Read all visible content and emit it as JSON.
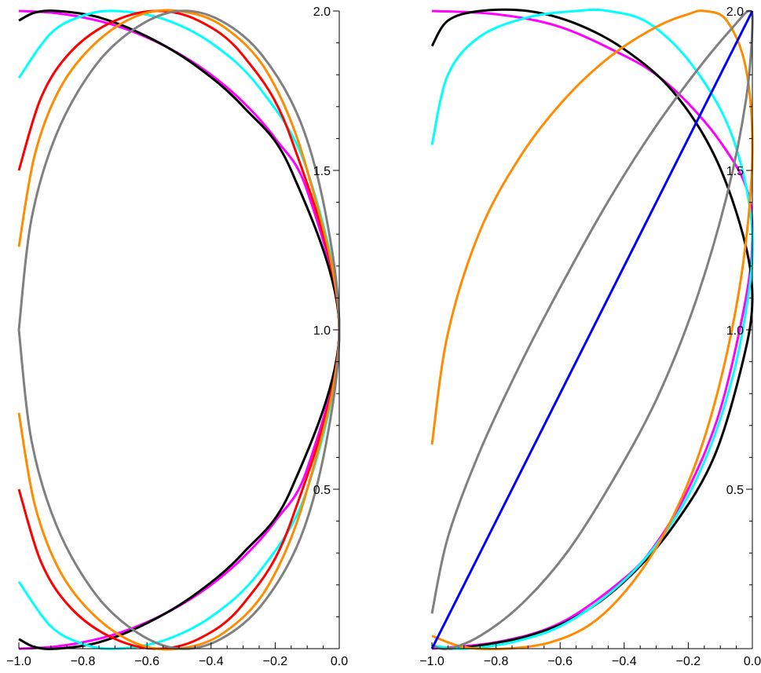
{
  "chart_data": [
    {
      "type": "line",
      "title": "",
      "xlabel": "",
      "ylabel": "",
      "xlim": [
        -1.0,
        0.0
      ],
      "ylim": [
        0.0,
        2.0
      ],
      "grid": false,
      "x_ticks": [
        "-1.0",
        "-0.8",
        "-0.6",
        "-0.4",
        "-0.2",
        "0.0"
      ],
      "y_ticks": [
        "0.5",
        "1.0",
        "1.5",
        "2.0"
      ],
      "series": [
        {
          "color": "#ff00ff",
          "x": [
            -1.0,
            -0.9,
            -0.8,
            -0.7,
            -0.6,
            -0.5,
            -0.4,
            -0.3,
            -0.2,
            -0.1,
            0.0,
            -0.1,
            -0.2,
            -0.3,
            -0.4,
            -0.5,
            -0.6,
            -0.7,
            -0.8,
            -0.9,
            -1.0
          ],
          "y": [
            2.0,
            1.995,
            1.98,
            1.955,
            1.917,
            1.866,
            1.8,
            1.714,
            1.6,
            1.436,
            1.0,
            0.564,
            0.4,
            0.286,
            0.2,
            0.134,
            0.083,
            0.045,
            0.02,
            0.005,
            0.0
          ]
        },
        {
          "color": "#000000",
          "x": [
            -1.0,
            -0.95,
            -0.88,
            -0.75,
            -0.6,
            -0.45,
            -0.3,
            -0.15,
            0.0,
            -0.15,
            -0.3,
            -0.45,
            -0.6,
            -0.75,
            -0.88,
            -0.95,
            -1.0
          ],
          "y": [
            1.97,
            1.995,
            2.0,
            1.98,
            1.92,
            1.83,
            1.7,
            1.5,
            1.0,
            0.5,
            0.3,
            0.17,
            0.08,
            0.02,
            0.0,
            0.005,
            0.03
          ]
        },
        {
          "color": "#00ffff",
          "x": [
            -1.0,
            -0.9,
            -0.8,
            -0.7,
            -0.55,
            -0.4,
            -0.25,
            -0.1,
            0.0,
            -0.1,
            -0.25,
            -0.4,
            -0.55,
            -0.7,
            -0.8,
            -0.9,
            -1.0
          ],
          "y": [
            1.79,
            1.93,
            1.985,
            2.0,
            1.975,
            1.9,
            1.76,
            1.5,
            1.0,
            0.5,
            0.24,
            0.1,
            0.025,
            0.0,
            0.015,
            0.07,
            0.21
          ]
        },
        {
          "color": "#ff0000",
          "x": [
            -1.0,
            -0.93,
            -0.84,
            -0.72,
            -0.58,
            -0.44,
            -0.3,
            -0.15,
            0.0,
            -0.15,
            -0.3,
            -0.44,
            -0.58,
            -0.72,
            -0.84,
            -0.93,
            -1.0
          ],
          "y": [
            1.5,
            1.73,
            1.87,
            1.96,
            2.0,
            1.97,
            1.86,
            1.6,
            1.0,
            0.4,
            0.14,
            0.03,
            0.0,
            0.04,
            0.13,
            0.27,
            0.5
          ]
        },
        {
          "color": "#ff8c00",
          "x": [
            -1.0,
            -0.95,
            -0.87,
            -0.76,
            -0.63,
            -0.5,
            -0.36,
            -0.22,
            -0.1,
            0.0,
            -0.1,
            -0.22,
            -0.36,
            -0.5,
            -0.63,
            -0.76,
            -0.87,
            -0.95,
            -1.0
          ],
          "y": [
            1.26,
            1.55,
            1.76,
            1.9,
            1.985,
            2.0,
            1.95,
            1.8,
            1.5,
            1.0,
            0.5,
            0.2,
            0.05,
            0.0,
            0.015,
            0.1,
            0.24,
            0.45,
            0.74
          ]
        },
        {
          "color": "#808080",
          "x": [
            -1.0,
            -0.96,
            -0.88,
            -0.76,
            -0.63,
            -0.5,
            -0.37,
            -0.24,
            -0.12,
            -0.04,
            0.0,
            -0.04,
            -0.12,
            -0.24,
            -0.37,
            -0.5,
            -0.63,
            -0.76,
            -0.88,
            -0.96,
            -1.0
          ],
          "y": [
            1.0,
            1.35,
            1.62,
            1.83,
            1.95,
            2.0,
            1.97,
            1.86,
            1.65,
            1.35,
            1.0,
            0.65,
            0.35,
            0.14,
            0.03,
            0.0,
            0.05,
            0.17,
            0.38,
            0.65,
            1.0
          ]
        }
      ]
    },
    {
      "type": "line",
      "title": "",
      "xlabel": "",
      "ylabel": "",
      "xlim": [
        -1.0,
        0.0
      ],
      "ylim": [
        0.0,
        2.0
      ],
      "grid": false,
      "x_ticks": [
        "-1.0",
        "-0.8",
        "-0.6",
        "-0.4",
        "-0.2",
        "0.0"
      ],
      "y_ticks": [
        "0.5",
        "1.0",
        "1.5",
        "2.0"
      ],
      "series": [
        {
          "color": "#ff00ff",
          "x": [
            -1.0,
            -0.8,
            -0.6,
            -0.4,
            -0.3,
            -0.2,
            -0.1,
            -0.02,
            0.0,
            -0.02,
            -0.1,
            -0.2,
            -0.3,
            -0.4,
            -0.6,
            -0.8,
            -1.0
          ],
          "y": [
            2.0,
            1.99,
            1.95,
            1.86,
            1.8,
            1.71,
            1.59,
            1.45,
            1.3,
            1.1,
            0.75,
            0.5,
            0.33,
            0.22,
            0.08,
            0.02,
            0.0
          ]
        },
        {
          "color": "#000000",
          "x": [
            -1.0,
            -0.95,
            -0.85,
            -0.7,
            -0.55,
            -0.4,
            -0.25,
            -0.12,
            -0.03,
            0.0,
            -0.03,
            -0.12,
            -0.25,
            -0.4,
            -0.55,
            -0.7,
            -0.85,
            -0.95,
            -1.0
          ],
          "y": [
            1.89,
            1.97,
            2.0,
            2.0,
            1.96,
            1.88,
            1.75,
            1.55,
            1.3,
            1.1,
            0.9,
            0.6,
            0.38,
            0.21,
            0.1,
            0.04,
            0.01,
            0.0,
            0.01
          ]
        },
        {
          "color": "#00ffff",
          "x": [
            -1.0,
            -0.95,
            -0.85,
            -0.7,
            -0.55,
            -0.45,
            -0.32,
            -0.18,
            -0.06,
            0.0,
            -0.03,
            -0.1,
            -0.2,
            -0.32,
            -0.45,
            -0.6,
            -0.75,
            -0.9,
            -1.0
          ],
          "y": [
            1.58,
            1.8,
            1.92,
            1.98,
            2.0,
            2.0,
            1.96,
            1.82,
            1.6,
            1.3,
            1.0,
            0.72,
            0.48,
            0.3,
            0.17,
            0.07,
            0.02,
            0.0,
            0.01
          ]
        },
        {
          "color": "#ff8c00",
          "x": [
            -1.0,
            -0.95,
            -0.85,
            -0.72,
            -0.58,
            -0.44,
            -0.3,
            -0.2,
            -0.15,
            -0.08,
            -0.02,
            0.0,
            -0.03,
            -0.09,
            -0.17,
            -0.27,
            -0.38,
            -0.5,
            -0.63,
            -0.77,
            -0.9,
            -1.0
          ],
          "y": [
            0.64,
            0.99,
            1.31,
            1.55,
            1.73,
            1.86,
            1.95,
            1.99,
            2.0,
            1.97,
            1.82,
            1.55,
            1.2,
            0.88,
            0.6,
            0.37,
            0.2,
            0.08,
            0.02,
            0.0,
            0.005,
            0.04
          ]
        },
        {
          "color": "#808080",
          "x": [
            -1.0,
            -0.95,
            -0.85,
            -0.72,
            -0.58,
            -0.44,
            -0.3,
            -0.16,
            -0.06,
            -0.01,
            0.0,
            -0.02,
            -0.08,
            -0.18,
            -0.3,
            -0.44,
            -0.58,
            -0.72,
            -0.85,
            -0.95,
            -1.0
          ],
          "y": [
            0.11,
            0.35,
            0.62,
            0.9,
            1.17,
            1.42,
            1.64,
            1.83,
            1.95,
            2.0,
            1.95,
            1.72,
            1.42,
            1.08,
            0.78,
            0.52,
            0.3,
            0.14,
            0.04,
            0.0,
            0.01
          ]
        },
        {
          "color": "#0000ff",
          "x": [
            -1.0,
            0.0
          ],
          "y": [
            0.0,
            2.0
          ]
        }
      ]
    }
  ]
}
